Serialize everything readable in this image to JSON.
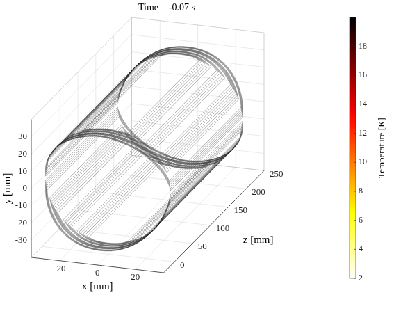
{
  "chart_data": {
    "type": "wireframe",
    "title": "Time = -0.07 s",
    "x_label": "x [mm]",
    "y_label": "y [mm]",
    "z_label": "z [mm]",
    "xlim": [
      -35,
      35
    ],
    "ylim": [
      -40,
      40
    ],
    "zlim": [
      -30,
      250
    ],
    "xticks": [
      -20,
      0,
      20
    ],
    "yticks": [
      -30,
      -20,
      -10,
      0,
      10,
      20,
      30
    ],
    "zticks": [
      0,
      50,
      100,
      150,
      200,
      250
    ],
    "grid": true,
    "coil": {
      "radius": 33,
      "straight_z": [
        0,
        200
      ],
      "pole_angles": [
        90,
        270
      ],
      "pole_half_width": 10,
      "conductors": [
        {
          "offset": 18,
          "end_length": 2.4
        },
        {
          "offset": 20,
          "end_length": 3
        },
        {
          "offset": 22,
          "end_length": 3.6
        },
        {
          "offset": 24,
          "end_length": 4.2
        },
        {
          "offset": 26,
          "end_length": 4.8
        },
        {
          "offset": 28,
          "end_length": 5.4
        },
        {
          "offset": 30,
          "end_length": 6
        },
        {
          "offset": 36,
          "end_length": 7.8
        },
        {
          "offset": 38,
          "end_length": 8.4
        },
        {
          "offset": 40,
          "end_length": 9
        },
        {
          "offset": 42,
          "end_length": 9.6
        },
        {
          "offset": 44,
          "end_length": 10.2
        },
        {
          "offset": 46,
          "end_length": 10.8
        },
        {
          "offset": 54,
          "end_length": 13.2
        },
        {
          "offset": 56,
          "end_length": 13.8
        },
        {
          "offset": 58,
          "end_length": 14.4
        },
        {
          "offset": 60,
          "end_length": 15
        },
        {
          "offset": 62,
          "end_length": 15.6
        },
        {
          "offset": 64,
          "end_length": 16.2
        },
        {
          "offset": 66,
          "end_length": 16.8
        },
        {
          "offset": 68,
          "end_length": 17.4
        },
        {
          "offset": 70,
          "end_length": 18
        },
        {
          "offset": 78,
          "end_length": 20.4
        },
        {
          "offset": 80,
          "end_length": 21
        },
        {
          "offset": 82,
          "end_length": 21.6
        },
        {
          "offset": 84,
          "end_length": 22.2
        },
        {
          "offset": 86,
          "end_length": 22.8
        },
        {
          "offset": 88,
          "end_length": 23.4
        }
      ]
    },
    "colorbar": {
      "label": "Temperature [K]",
      "range": [
        2,
        20
      ],
      "ticks": [
        2,
        4,
        6,
        8,
        10,
        12,
        14,
        16,
        18
      ]
    }
  }
}
